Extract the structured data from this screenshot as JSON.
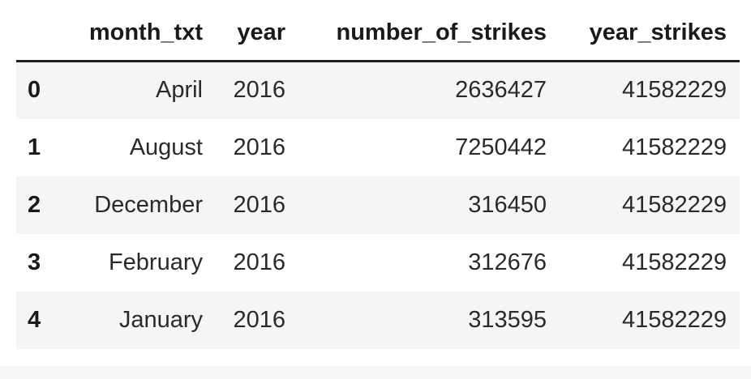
{
  "table": {
    "columns": [
      "",
      "month_txt",
      "year",
      "number_of_strikes",
      "year_strikes"
    ],
    "rows": [
      {
        "index": "0",
        "month_txt": "April",
        "year": "2016",
        "number_of_strikes": "2636427",
        "year_strikes": "41582229"
      },
      {
        "index": "1",
        "month_txt": "August",
        "year": "2016",
        "number_of_strikes": "7250442",
        "year_strikes": "41582229"
      },
      {
        "index": "2",
        "month_txt": "December",
        "year": "2016",
        "number_of_strikes": "316450",
        "year_strikes": "41582229"
      },
      {
        "index": "3",
        "month_txt": "February",
        "year": "2016",
        "number_of_strikes": "312676",
        "year_strikes": "41582229"
      },
      {
        "index": "4",
        "month_txt": "January",
        "year": "2016",
        "number_of_strikes": "313595",
        "year_strikes": "41582229"
      }
    ]
  },
  "colors": {
    "striped_row": "#f5f5f5",
    "header_rule": "#1f1f1f",
    "text": "#222222"
  }
}
